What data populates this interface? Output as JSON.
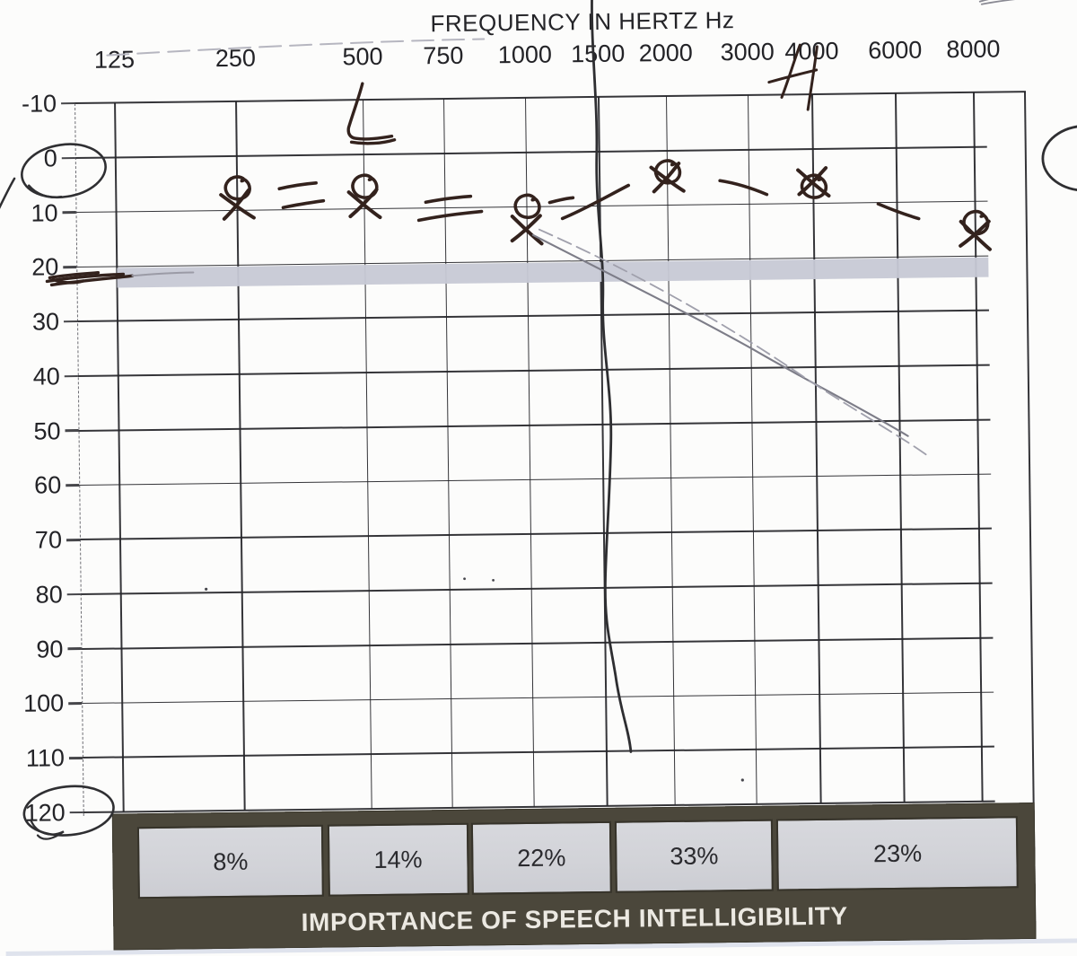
{
  "colors": {
    "ink_pen": "#33221d",
    "pencil_gray": "#8a8a96",
    "grid_line": "#26262a",
    "threshold_band_gray": "#c7c9d5",
    "importance_band_dark": "#4b473b",
    "percent_box_gray": "#d4d5da",
    "label_text": "#202022",
    "importance_text": "#ece9e2"
  },
  "chart_data": {
    "type": "scatter",
    "title": "FREQUENCY IN HERTZ Hz",
    "xlabel": "FREQUENCY IN HERTZ Hz",
    "ylabel": "",
    "x_ticks": [
      "125",
      "250",
      "500",
      "750",
      "1000",
      "1500",
      "2000",
      "3000",
      "4000",
      "6000",
      "8000"
    ],
    "x_positions_pct": [
      0,
      14.1,
      28.9,
      38.3,
      47.8,
      56.3,
      64.2,
      73.7,
      81.2,
      90.9,
      100
    ],
    "y_ticks": [
      "-10",
      "0",
      "10",
      "20",
      "30",
      "40",
      "50",
      "60",
      "70",
      "80",
      "90",
      "100",
      "110",
      "120"
    ],
    "ylim": [
      -10,
      120
    ],
    "grid": "on",
    "shaded_band_dB": 20,
    "series": [
      {
        "name": "O circle markers (hand-drawn)",
        "marker": "circle",
        "x": [
          "250",
          "500",
          "1000",
          "2000",
          "4000",
          "8000"
        ],
        "y_db": [
          6,
          6,
          10,
          4,
          7,
          14
        ]
      },
      {
        "name": "X cross markers (hand-drawn)",
        "marker": "cross",
        "x": [
          "250",
          "500",
          "1000",
          "2000",
          "4000",
          "8000"
        ],
        "y_db": [
          9,
          9,
          14,
          5,
          6,
          16
        ]
      }
    ],
    "annotations": [
      "0 on dB axis circled by hand",
      "120 on dB axis circled by hand",
      "pen scribble through 20 dB at left edge",
      "check/L-shaped pen mark above 500 Hz",
      "H-shaped pen scribble over 4000 Hz label",
      "long wavy vertical pen stroke near 1500 Hz column",
      "two thin diagonal pencil lines from 1000 Hz marker toward 6000 Hz at 50 dB",
      "partial hand-drawn circle at right page edge",
      "faint scribble at top right corner",
      "dashed hand strokes connecting markers"
    ]
  },
  "importance": {
    "label": "IMPORTANCE OF SPEECH INTELLIGIBILITY",
    "segments": [
      {
        "value": "8%",
        "left_pct": 2.7,
        "width_pct": 19.8
      },
      {
        "value": "14%",
        "left_pct": 23.3,
        "width_pct": 14.9
      },
      {
        "value": "22%",
        "left_pct": 38.9,
        "width_pct": 14.8
      },
      {
        "value": "33%",
        "left_pct": 54.5,
        "width_pct": 16.7
      },
      {
        "value": "23%",
        "left_pct": 72.0,
        "width_pct": 25.8
      }
    ]
  }
}
